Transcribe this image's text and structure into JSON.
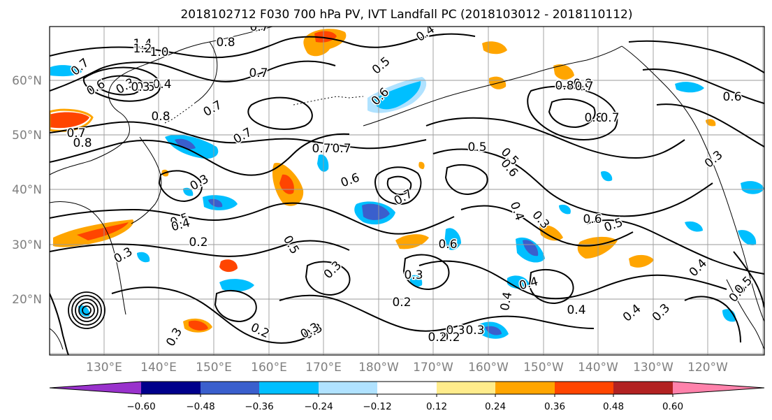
{
  "title": "2018102712 F030 700 hPa PV, IVT Landfall PC (2018103012 - 2018110112)",
  "latitude_labels": [
    "60°N",
    "50°N",
    "40°N",
    "30°N",
    "20°N"
  ],
  "longitude_labels": [
    "130°E",
    "140°E",
    "150°E",
    "160°E",
    "170°E",
    "180°W",
    "170°W",
    "160°W",
    "150°W",
    "140°W",
    "130°W",
    "120°W"
  ],
  "colorbar": {
    "tick_labels": [
      "−0.60",
      "−0.48",
      "−0.36",
      "−0.24",
      "−0.12",
      "0.12",
      "0.24",
      "0.36",
      "0.48",
      "0.60"
    ],
    "colors": [
      "#9932cc",
      "#00008b",
      "#3a5fcd",
      "#00bfff",
      "#b0e2ff",
      "#ffffff",
      "#ffec8b",
      "#ffa500",
      "#ff4500",
      "#b22222",
      "#ff82ab"
    ]
  },
  "shading_colors": {
    "neg_light": "#b0e2ff",
    "neg_mid": "#00bfff",
    "neg_strong": "#3a5fcd",
    "pos_light": "#ffec8b",
    "pos_mid": "#ffa500",
    "pos_strong": "#ff4500"
  },
  "contour_labels": [
    {
      "text": "1.4"
    },
    {
      "text": "1.2"
    },
    {
      "text": "1.0"
    },
    {
      "text": "0.7"
    },
    {
      "text": "0.8"
    },
    {
      "text": "0.7"
    },
    {
      "text": "0.4"
    },
    {
      "text": "0.5"
    },
    {
      "text": "0.3"
    },
    {
      "text": "0.4"
    },
    {
      "text": "0.5"
    },
    {
      "text": "0.6"
    },
    {
      "text": "0.3"
    },
    {
      "text": "0.7"
    },
    {
      "text": "0.8"
    },
    {
      "text": "0.7"
    },
    {
      "text": "0.6"
    },
    {
      "text": "0.7"
    },
    {
      "text": "0.8"
    },
    {
      "text": "0.7"
    },
    {
      "text": "0.7"
    },
    {
      "text": "0.7"
    },
    {
      "text": "0.5"
    },
    {
      "text": "0.6"
    },
    {
      "text": "0.5"
    },
    {
      "text": "0.8"
    },
    {
      "text": "0.7"
    },
    {
      "text": "0.8"
    },
    {
      "text": "0.8"
    },
    {
      "text": "0.6"
    },
    {
      "text": "0.7"
    },
    {
      "text": "0.3"
    },
    {
      "text": "0.3"
    },
    {
      "text": "0.5"
    },
    {
      "text": "0.4"
    },
    {
      "text": "0.2"
    },
    {
      "text": "0.6"
    },
    {
      "text": "0.7"
    },
    {
      "text": "0.6"
    },
    {
      "text": "0.5"
    },
    {
      "text": "0.4"
    },
    {
      "text": "0.3"
    },
    {
      "text": "0.4"
    },
    {
      "text": "0.3"
    },
    {
      "text": "0.6"
    },
    {
      "text": "0.5"
    },
    {
      "text": "0.3"
    },
    {
      "text": "0.5"
    },
    {
      "text": "0.3"
    },
    {
      "text": "0.3"
    },
    {
      "text": "0.4"
    },
    {
      "text": "0.4"
    },
    {
      "text": "0.4"
    },
    {
      "text": "0.2"
    },
    {
      "text": "0.4"
    },
    {
      "text": "0.5"
    },
    {
      "text": "0.3"
    },
    {
      "text": "0.2"
    },
    {
      "text": "0.2"
    },
    {
      "text": "0.3"
    },
    {
      "text": "0.3"
    },
    {
      "text": "0.2"
    },
    {
      "text": "0.3"
    },
    {
      "text": "0.3"
    }
  ]
}
